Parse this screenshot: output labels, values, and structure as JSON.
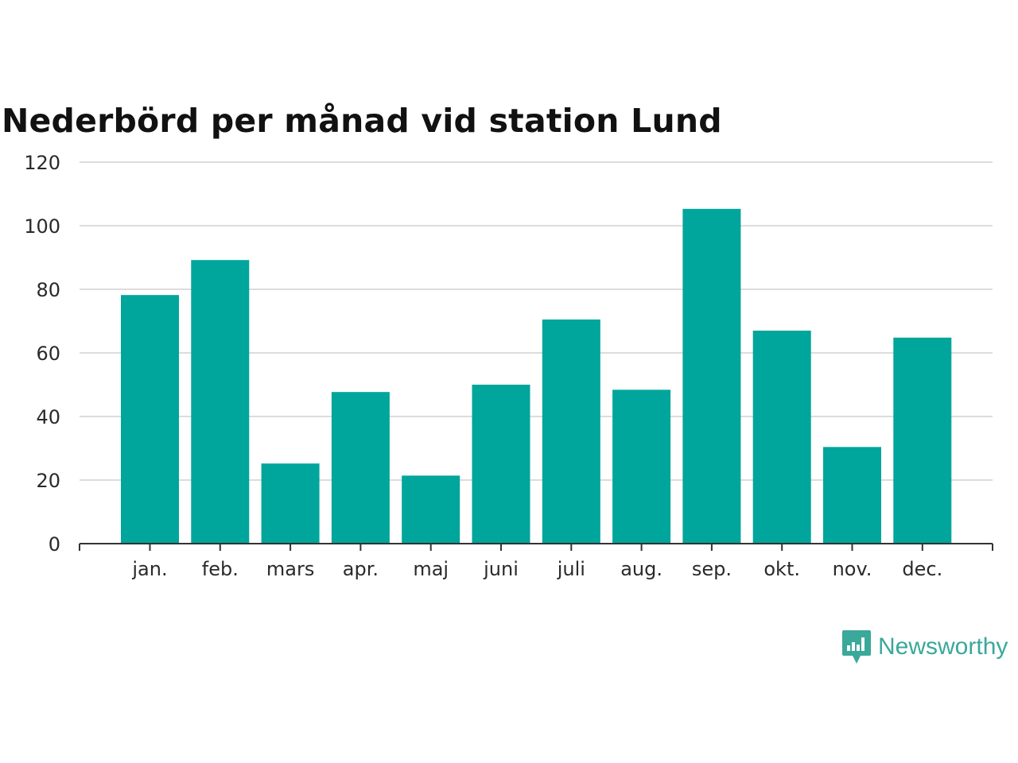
{
  "colors": {
    "bar": "#00a59b",
    "grid": "#dcdcdc",
    "axis": "#333333",
    "brand": "#3aa89a"
  },
  "chart_data": {
    "type": "bar",
    "title": "Nederbörd per månad vid station Lund",
    "xlabel": "",
    "ylabel": "",
    "ylim": [
      0,
      120
    ],
    "yticks": [
      0,
      20,
      40,
      60,
      80,
      100,
      120
    ],
    "grid": true,
    "categories": [
      "jan.",
      "feb.",
      "mars",
      "apr.",
      "maj",
      "juni",
      "juli",
      "aug.",
      "sep.",
      "okt.",
      "nov.",
      "dec."
    ],
    "values": [
      78.2,
      89.2,
      25.2,
      47.7,
      21.4,
      50.0,
      70.5,
      48.4,
      105.3,
      67.0,
      30.4,
      64.8
    ]
  },
  "branding": {
    "name": "Newsworthy",
    "icon": "newsworthy-logo-icon"
  }
}
